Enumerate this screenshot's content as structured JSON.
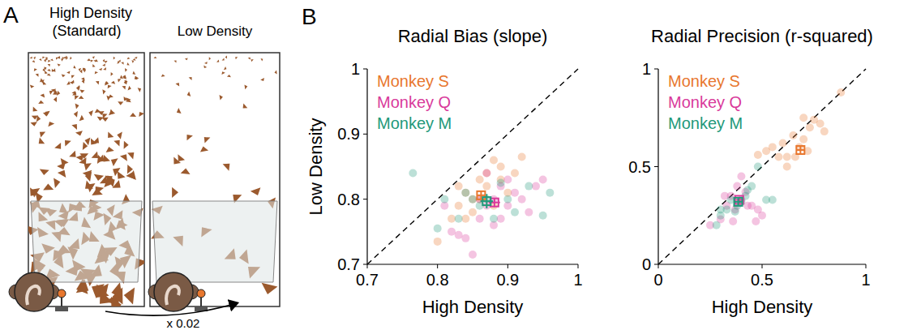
{
  "panels": {
    "a": {
      "letter": "A",
      "high_label": "High Density (Standard)",
      "low_label": "Low Density",
      "factor": "x 0.02"
    },
    "b": {
      "letter": "B"
    }
  },
  "chart_data": [
    {
      "type": "scatter",
      "title": "Radial Bias (slope)",
      "x_label": "High Density",
      "y_label": "Low Density",
      "xlim": [
        0.7,
        1
      ],
      "ylim": [
        0.7,
        1
      ],
      "xticks": [
        0.7,
        0.8,
        0.9,
        1
      ],
      "yticks": [
        0.7,
        0.8,
        0.9,
        1
      ],
      "legend": "upper left",
      "series": [
        {
          "name": "Monkey S",
          "color": "#e8772e",
          "x": [
            0.8,
            0.82,
            0.83,
            0.84,
            0.85,
            0.86,
            0.87,
            0.88,
            0.89,
            0.91,
            0.92,
            0.83,
            0.85,
            0.87,
            0.88,
            0.86,
            0.9,
            0.84,
            0.89
          ],
          "values": [
            0.735,
            0.77,
            0.79,
            0.81,
            0.78,
            0.83,
            0.84,
            0.86,
            0.85,
            0.84,
            0.865,
            0.82,
            0.8,
            0.82,
            0.79,
            0.8,
            0.81,
            0.77,
            0.83
          ],
          "mean_x": 0.862,
          "mean_y": 0.806,
          "x_error": 0.006,
          "y_error": 0.007
        },
        {
          "name": "Monkey Q",
          "color": "#d93a9b",
          "x": [
            0.81,
            0.82,
            0.83,
            0.84,
            0.85,
            0.86,
            0.87,
            0.88,
            0.89,
            0.9,
            0.91,
            0.92,
            0.93,
            0.94,
            0.95,
            0.87,
            0.88,
            0.9,
            0.86,
            0.89
          ],
          "values": [
            0.79,
            0.75,
            0.745,
            0.74,
            0.715,
            0.77,
            0.79,
            0.8,
            0.77,
            0.83,
            0.81,
            0.8,
            0.78,
            0.82,
            0.83,
            0.84,
            0.76,
            0.79,
            0.8,
            0.82
          ],
          "mean_x": 0.881,
          "mean_y": 0.795,
          "x_error": 0.008,
          "y_error": 0.007
        },
        {
          "name": "Monkey M",
          "color": "#22997a",
          "x": [
            0.765,
            0.8,
            0.81,
            0.84,
            0.86,
            0.87,
            0.88,
            0.9,
            0.91,
            0.93,
            0.95,
            0.96,
            0.85,
            0.89,
            0.83
          ],
          "values": [
            0.84,
            0.755,
            0.8,
            0.81,
            0.79,
            0.8,
            0.77,
            0.8,
            0.78,
            0.82,
            0.775,
            0.81,
            0.8,
            0.825,
            0.77
          ],
          "mean_x": 0.87,
          "mean_y": 0.797,
          "x_error": 0.009,
          "y_error": 0.011
        }
      ]
    },
    {
      "type": "scatter",
      "title": "Radial Precision (r-squared)",
      "x_label": "High Density",
      "xlim": [
        0,
        1
      ],
      "ylim": [
        0,
        1
      ],
      "xticks": [
        0,
        0.5,
        1
      ],
      "yticks": [
        0,
        0.5,
        1
      ],
      "legend": "upper left",
      "series": [
        {
          "name": "Monkey S",
          "color": "#e8772e",
          "x": [
            0.48,
            0.52,
            0.55,
            0.6,
            0.62,
            0.65,
            0.68,
            0.7,
            0.72,
            0.73,
            0.75,
            0.78,
            0.8,
            0.7,
            0.88,
            0.66,
            0.62,
            0.58
          ],
          "values": [
            0.56,
            0.58,
            0.6,
            0.62,
            0.55,
            0.66,
            0.6,
            0.64,
            0.58,
            0.7,
            0.74,
            0.72,
            0.68,
            0.75,
            0.88,
            0.55,
            0.5,
            0.55
          ],
          "mean_x": 0.685,
          "mean_y": 0.585,
          "x_error": 0.02,
          "y_error": 0.02
        },
        {
          "name": "Monkey Q",
          "color": "#d93a9b",
          "x": [
            0.25,
            0.3,
            0.33,
            0.35,
            0.37,
            0.38,
            0.4,
            0.42,
            0.45,
            0.47,
            0.5,
            0.4,
            0.36,
            0.43,
            0.32,
            0.48
          ],
          "values": [
            0.2,
            0.23,
            0.3,
            0.35,
            0.28,
            0.4,
            0.33,
            0.37,
            0.3,
            0.22,
            0.25,
            0.45,
            0.22,
            0.3,
            0.35,
            0.28
          ],
          "mean_x": 0.39,
          "mean_y": 0.33,
          "x_error": 0.015,
          "y_error": 0.015
        },
        {
          "name": "Monkey M",
          "color": "#22997a",
          "x": [
            0.28,
            0.3,
            0.33,
            0.35,
            0.38,
            0.4,
            0.43,
            0.45,
            0.48,
            0.52,
            0.55,
            0.3,
            0.37,
            0.42
          ],
          "values": [
            0.2,
            0.25,
            0.28,
            0.33,
            0.3,
            0.32,
            0.38,
            0.4,
            0.5,
            0.33,
            0.33,
            0.28,
            0.27,
            0.35
          ],
          "mean_x": 0.385,
          "mean_y": 0.32,
          "x_error": 0.02,
          "y_error": 0.02
        }
      ]
    }
  ]
}
